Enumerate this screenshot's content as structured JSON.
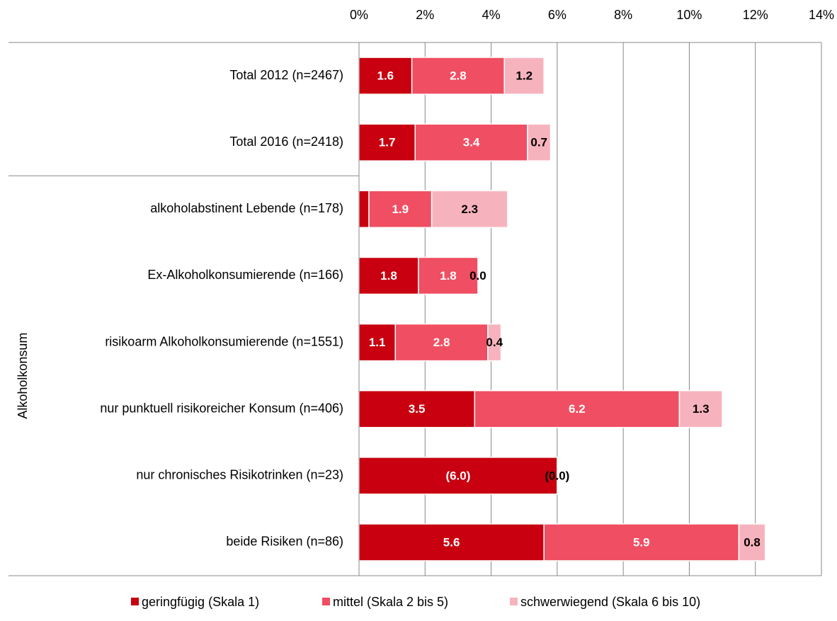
{
  "chart_data": {
    "type": "stacked-barh",
    "categories": [
      "Total 2012 (n=2467)",
      "Total 2016 (n=2418)",
      "alkoholabstinent Lebende (n=178)",
      "Ex-Alkoholkonsumierende (n=166)",
      "risikoarm Alkoholkonsumierende (n=1551)",
      "nur punktuell risikoreicher Konsum (n=406)",
      "nur chronisches Risikotrinken (n=23)",
      "beide Risiken (n=86)"
    ],
    "group_label": "Alkoholkonsum",
    "series": [
      {
        "name": "geringfügig (Skala 1)",
        "color": "#c8000f",
        "label_color": "#ffffff",
        "values": [
          1.6,
          1.7,
          0.3,
          1.8,
          1.1,
          3.5,
          6.0,
          5.6
        ],
        "value_labels": [
          "1.6",
          "1.7",
          null,
          "1.8",
          "1.1",
          "3.5",
          "(6.0)",
          "5.6"
        ]
      },
      {
        "name": "mittel (Skala 2 bis 5)",
        "color": "#f04e62",
        "label_color": "#ffffff",
        "values": [
          2.8,
          3.4,
          1.9,
          1.8,
          2.8,
          6.2,
          0.0,
          5.9
        ],
        "value_labels": [
          "2.8",
          "3.4",
          "1.9",
          "1.8",
          "2.8",
          "6.2",
          null,
          "5.9"
        ]
      },
      {
        "name": "schwerwiegend (Skala 6 bis 10)",
        "color": "#f7b3bd",
        "label_color": "#000000",
        "values": [
          1.2,
          0.7,
          2.3,
          0.0,
          0.4,
          1.3,
          0.0,
          0.8
        ],
        "value_labels": [
          "1.2",
          "0.7",
          "2.3",
          "0.0",
          "0.4",
          "1.3",
          "(0.0)",
          "0.8"
        ]
      }
    ],
    "xlim": [
      0,
      14
    ],
    "xticks": [
      {
        "value": 0,
        "label": "0%"
      },
      {
        "value": 2,
        "label": "2%"
      },
      {
        "value": 4,
        "label": "4%"
      },
      {
        "value": 6,
        "label": "6%"
      },
      {
        "value": 8,
        "label": "8%"
      },
      {
        "value": 10,
        "label": "10%"
      },
      {
        "value": 12,
        "label": "12%"
      },
      {
        "value": 14,
        "label": "14%"
      }
    ],
    "grid": true,
    "legend": "bottom"
  }
}
